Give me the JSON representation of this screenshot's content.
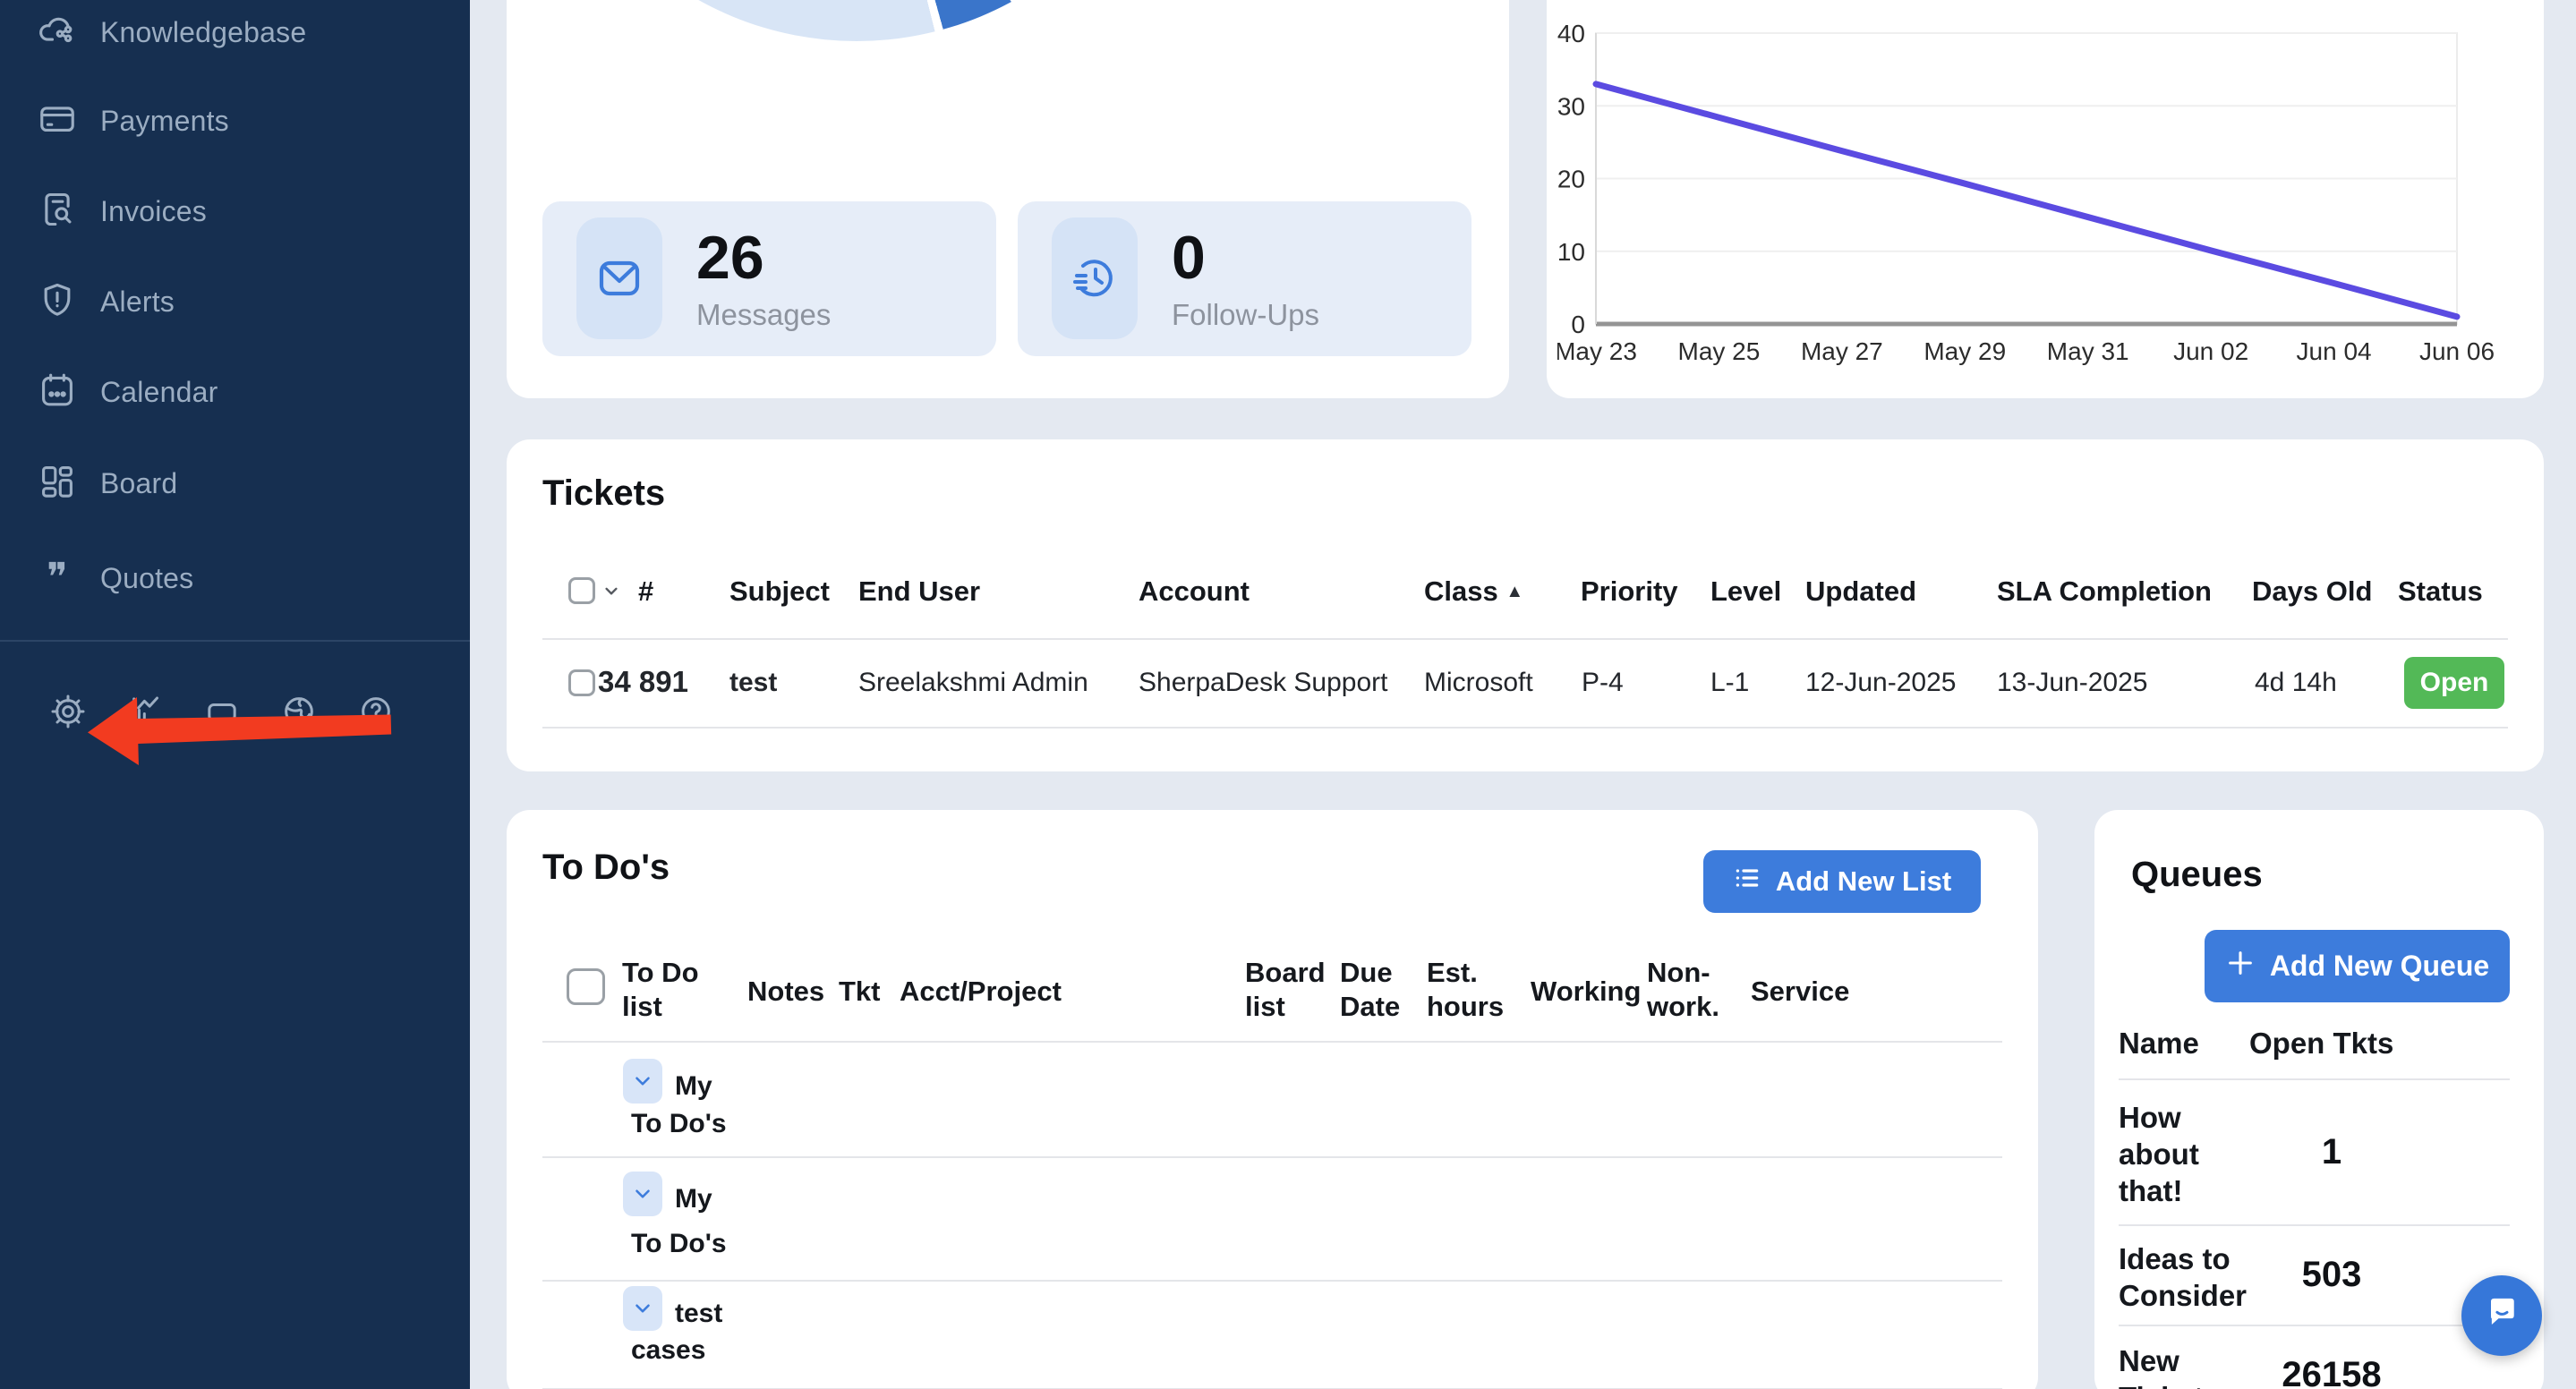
{
  "theme": {
    "bg": "#e4e9f1",
    "sidebar_bg": "#162f50",
    "sidebar_text": "#9badc2",
    "panel_bg": "#ffffff",
    "accent_blue": "#3d7cdc",
    "light_card": "#e6edf8",
    "icon_tile": "#d5e3f6",
    "open_green": "#53b957",
    "arrow_red": "#f23b20",
    "muted_text": "#8d939e",
    "divider": "#e4e5e9",
    "pie_light": "#d8e5f6",
    "pie_dark": "#3a75ca",
    "chart_line": "#5b4be1"
  },
  "sidebar": {
    "items": [
      {
        "label": "Knowledgebase",
        "icon": "cloud-share-icon"
      },
      {
        "label": "Payments",
        "icon": "credit-card-icon"
      },
      {
        "label": "Invoices",
        "icon": "document-search-icon"
      },
      {
        "label": "Alerts",
        "icon": "shield-alert-icon"
      },
      {
        "label": "Calendar",
        "icon": "calendar-icon"
      },
      {
        "label": "Board",
        "icon": "kanban-icon"
      },
      {
        "label": "Quotes",
        "icon": "quotes-icon",
        "glyph": "❞"
      }
    ],
    "footer_icons": [
      "settings-gear-icon",
      "activity-chart-icon",
      "panel-icon",
      "globe-icon",
      "help-icon"
    ]
  },
  "overview": {
    "donut_segment_colors": [
      "#d8e5f6",
      "#3a75ca"
    ],
    "stats": [
      {
        "value": "26",
        "label": "Messages",
        "icon": "envelope-icon"
      },
      {
        "value": "0",
        "label": "Follow-Ups",
        "icon": "clock-follow-up-icon"
      }
    ]
  },
  "chart_data": {
    "type": "line",
    "title": "",
    "x": [
      "May 23",
      "May 25",
      "May 27",
      "May 29",
      "May 31",
      "Jun 02",
      "Jun 04",
      "Jun 06"
    ],
    "values": [
      33,
      28.4,
      23.8,
      19.3,
      14.7,
      10.1,
      5.6,
      1
    ],
    "y_ticks": [
      40,
      30,
      20,
      10,
      0
    ],
    "ylim": [
      0,
      40
    ],
    "grid": true,
    "legend": "none",
    "line_color": "#5b4be1"
  },
  "tickets": {
    "title": "Tickets",
    "sort_arrow": "▲",
    "columns": [
      "#",
      "Subject",
      "End User",
      "Account",
      "Class",
      "Priority",
      "Level",
      "Updated",
      "SLA Completion",
      "Days Old",
      "Status"
    ],
    "rows": [
      {
        "number": "34 891",
        "subject": "test",
        "end_user": "Sreelakshmi Admin",
        "account": "SherpaDesk Support",
        "class": "Microsoft",
        "priority": "P-4",
        "level": "L-1",
        "updated": "12-Jun-2025",
        "sla_completion": "13-Jun-2025",
        "days_old": "4d 14h",
        "status": "Open"
      }
    ]
  },
  "todos": {
    "title": "To Do's",
    "add_button": "Add New List",
    "columns": [
      "To Do list",
      "Notes",
      "Tkt",
      "Acct/Project",
      "Board list",
      "Due Date",
      "Est. hours",
      "Working",
      "Non-work.",
      "Service"
    ],
    "rows": [
      {
        "label_line1": "My",
        "label_line2": "To Do's"
      },
      {
        "label_line1": "My",
        "label_line2": "To Do's"
      },
      {
        "label_line1": "test",
        "label_line2": "cases"
      }
    ]
  },
  "queues": {
    "title": "Queues",
    "add_button": "Add New Queue",
    "columns": [
      "Name",
      "Open Tkts"
    ],
    "rows": [
      {
        "name": "How about that!",
        "open_tkts": "1"
      },
      {
        "name": "Ideas to Consider",
        "open_tkts": "503"
      },
      {
        "name": "New Tickets",
        "open_tkts": "26158"
      }
    ]
  }
}
